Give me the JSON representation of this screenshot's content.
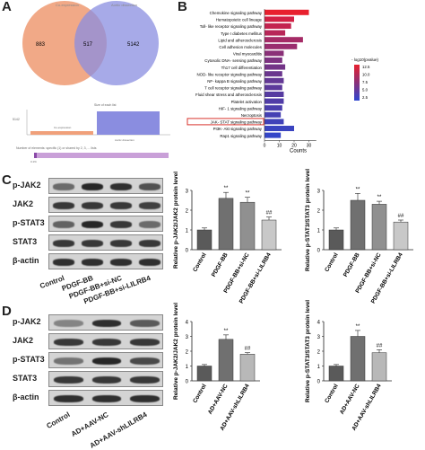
{
  "panels": {
    "a": "A",
    "b": "B",
    "c": "C",
    "d": "D"
  },
  "venn": {
    "left_title": "Co-expression",
    "right_title": "Aortic dissection",
    "left_only": "883",
    "overlap": "517",
    "right_only": "5142",
    "left_color": "#f0a07a",
    "right_color": "#8a8de0",
    "upset_caption_top": "Size of each list",
    "upset_caption_bottom": "Number of elements: specific (1) or shared by 2, 3, ... lists",
    "upset_left_axis": "5142",
    "upset_left_bar": "Co-expression",
    "upset_right_bar": "Aortic dissection",
    "upset_tick": "0.1%"
  },
  "kegg": {
    "xlabel": "Counts",
    "legend_title": "- log10(pvalue)",
    "legend_ticks": [
      "12.5",
      "10.0",
      "7.5",
      "5.0",
      "2.5"
    ],
    "xticks": [
      "0",
      "10",
      "20",
      "30"
    ],
    "highlight": "JAK- STAT signaling pathway",
    "highlight_color": "#d9352e",
    "pathways": [
      {
        "name": "Chemokine signaling pathway",
        "count": 30,
        "color": "#e8202e"
      },
      {
        "name": "Hematopoietic cell lineage",
        "count": 20,
        "color": "#d22145"
      },
      {
        "name": "Toll- like receptor signaling pathway",
        "count": 18,
        "color": "#c3234f"
      },
      {
        "name": "Type I diabetes mellitus",
        "count": 14,
        "color": "#b82658"
      },
      {
        "name": "Lipid and atherosclerosis",
        "count": 26,
        "color": "#a52b66"
      },
      {
        "name": "Cell adhesion molecules",
        "count": 22,
        "color": "#9a2d6e"
      },
      {
        "name": "Viral myocarditis",
        "count": 13,
        "color": "#8a3078"
      },
      {
        "name": "Cytosolic DNA- sensing pathway",
        "count": 12,
        "color": "#7d3281"
      },
      {
        "name": "Th17 cell differentiation",
        "count": 14,
        "color": "#733487"
      },
      {
        "name": "NOD- like receptor signaling pathway",
        "count": 12,
        "color": "#6a368e"
      },
      {
        "name": "NF- kappa B signaling pathway",
        "count": 13,
        "color": "#633895"
      },
      {
        "name": "T cell receptor signaling pathway",
        "count": 12,
        "color": "#5c399b"
      },
      {
        "name": "Fluid shear stress and atherosclerosis",
        "count": 13,
        "color": "#563ba1"
      },
      {
        "name": "Platelet activation",
        "count": 13,
        "color": "#503ca7"
      },
      {
        "name": "HIF- 1 signaling pathway",
        "count": 12,
        "color": "#4a3ead"
      },
      {
        "name": "Necroptosis",
        "count": 11,
        "color": "#4540b3"
      },
      {
        "name": "JAK- STAT signaling pathway",
        "count": 13,
        "color": "#4042b9"
      },
      {
        "name": "PI3K- Akt signaling pathway",
        "count": 20,
        "color": "#3a44c0"
      },
      {
        "name": "Rap1 signaling pathway",
        "count": 11,
        "color": "#3446c8"
      }
    ]
  },
  "blotC": {
    "rows": [
      "p-JAK2",
      "JAK2",
      "p-STAT3",
      "STAT3",
      "β-actin"
    ],
    "lanes": [
      "Control",
      "PDGF-BB",
      "PDGF-BB+si-NC",
      "PDGF-BB+si-LILRB4"
    ]
  },
  "blotD": {
    "rows": [
      "p-JAK2",
      "JAK2",
      "p-STAT3",
      "STAT3",
      "β-actin"
    ],
    "lanes": [
      "Control",
      "AD+AAV-NC",
      "AD+AAV-shLILRB4"
    ]
  },
  "chart_data": [
    {
      "type": "bar",
      "panel": "C",
      "ylabel": "Relative p-JAK2/JAK2 protein level",
      "yticks": [
        "0",
        "1",
        "2",
        "3"
      ],
      "ylim": [
        0,
        3
      ],
      "categories": [
        "Control",
        "PDGF-BB",
        "PDGF-BB+si-NC",
        "PDGF-BB+si-LILRB4"
      ],
      "values": [
        1.0,
        2.6,
        2.4,
        1.5
      ],
      "errors": [
        0.1,
        0.3,
        0.25,
        0.15
      ],
      "marks": [
        "",
        "**",
        "**",
        "##"
      ],
      "colors": [
        "#5a5a5a",
        "#707070",
        "#909090",
        "#c8c8c8"
      ]
    },
    {
      "type": "bar",
      "panel": "C",
      "ylabel": "Relative p-STAT3/STAT3 protein level",
      "yticks": [
        "0",
        "1",
        "2",
        "3"
      ],
      "ylim": [
        0,
        3
      ],
      "categories": [
        "Control",
        "PDGF-BB",
        "PDGF-BB+si-NC",
        "PDGF-BB+si-LILRB4"
      ],
      "values": [
        1.0,
        2.5,
        2.3,
        1.4
      ],
      "errors": [
        0.1,
        0.35,
        0.15,
        0.1
      ],
      "marks": [
        "",
        "**",
        "**",
        "##"
      ],
      "colors": [
        "#5a5a5a",
        "#707070",
        "#909090",
        "#c8c8c8"
      ]
    },
    {
      "type": "bar",
      "panel": "D",
      "ylabel": "Relative p-JAK2/JAK2 protein level",
      "yticks": [
        "0",
        "1",
        "2",
        "3",
        "4"
      ],
      "ylim": [
        0,
        4
      ],
      "categories": [
        "Control",
        "AD+AAV-NC",
        "AD+AAV-shLILRB4"
      ],
      "values": [
        1.0,
        2.8,
        1.8
      ],
      "errors": [
        0.1,
        0.3,
        0.1
      ],
      "marks": [
        "",
        "**",
        "##"
      ],
      "colors": [
        "#5a5a5a",
        "#707070",
        "#b8b8b8"
      ]
    },
    {
      "type": "bar",
      "panel": "D",
      "ylabel": "Relative p-STAT3/STAT3 protein level",
      "yticks": [
        "0",
        "1",
        "2",
        "3",
        "4"
      ],
      "ylim": [
        0,
        4
      ],
      "categories": [
        "Control",
        "AD+AAV-NC",
        "AD+AAV-shLILRB4"
      ],
      "values": [
        1.0,
        3.0,
        1.9
      ],
      "errors": [
        0.1,
        0.4,
        0.2
      ],
      "marks": [
        "",
        "**",
        "##"
      ],
      "colors": [
        "#5a5a5a",
        "#707070",
        "#b8b8b8"
      ]
    }
  ]
}
